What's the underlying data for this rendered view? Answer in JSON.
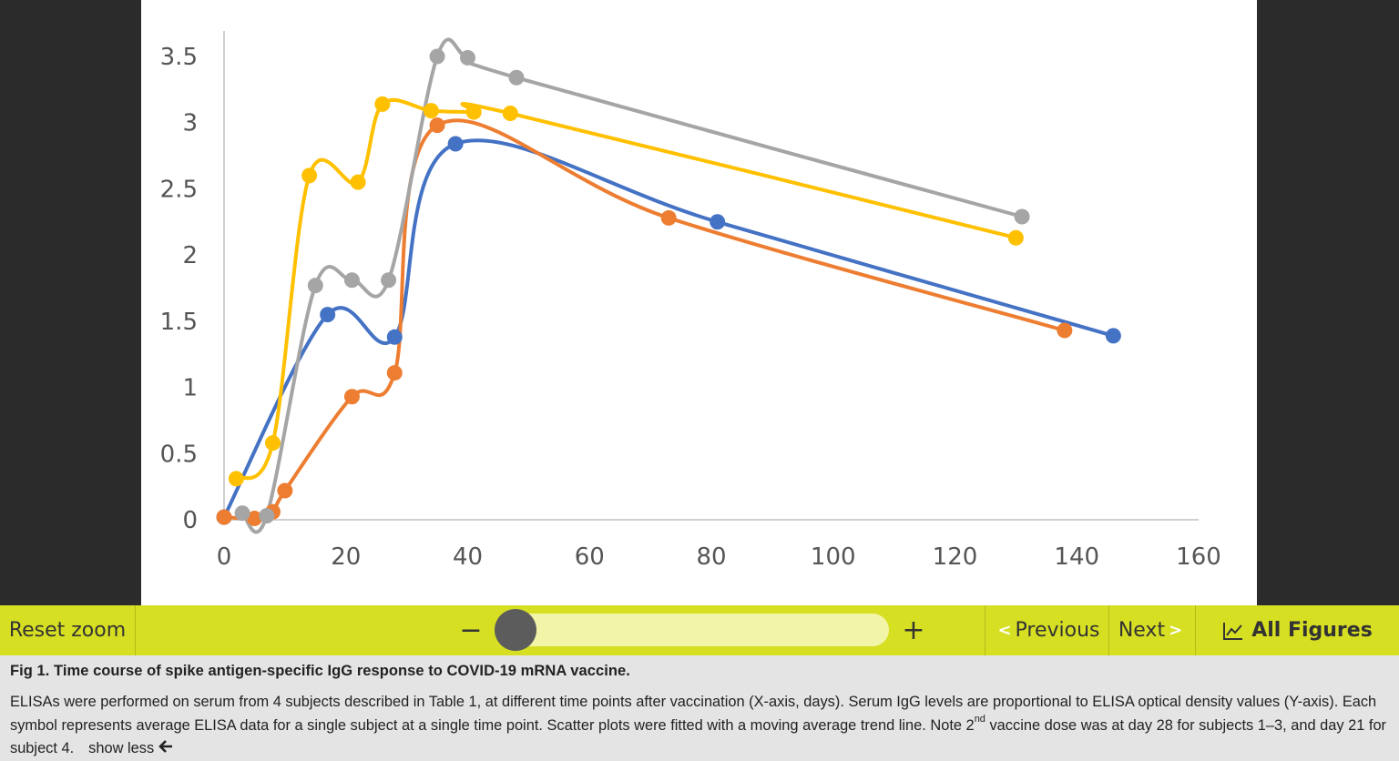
{
  "chart_data": {
    "type": "line",
    "title": "",
    "xlabel": "",
    "ylabel": "",
    "xlim": [
      0,
      160
    ],
    "ylim": [
      0,
      3.5
    ],
    "xticks": [
      0,
      20,
      40,
      60,
      80,
      100,
      120,
      140,
      160
    ],
    "yticks": [
      0,
      0.5,
      1,
      1.5,
      2,
      2.5,
      3,
      3.5
    ],
    "xtick_labels": [
      "0",
      "20",
      "40",
      "60",
      "80",
      "100",
      "120",
      "140",
      "160"
    ],
    "ytick_labels": [
      "0",
      "0.5",
      "1",
      "1.5",
      "2",
      "2.5",
      "3",
      "3.5"
    ],
    "grid": false,
    "legend": false,
    "series": [
      {
        "color": "#4472c4",
        "points": [
          [
            0,
            0.02
          ],
          [
            17,
            1.55
          ],
          [
            28,
            1.38
          ],
          [
            38,
            2.84
          ],
          [
            81,
            2.25
          ],
          [
            146,
            1.39
          ]
        ]
      },
      {
        "color": "#ed7d31",
        "points": [
          [
            0,
            0.02
          ],
          [
            5,
            0.01
          ],
          [
            8,
            0.06
          ],
          [
            10,
            0.22
          ],
          [
            21,
            0.93
          ],
          [
            28,
            1.11
          ],
          [
            35,
            2.98
          ],
          [
            73,
            2.28
          ],
          [
            138,
            1.43
          ]
        ]
      },
      {
        "color": "#a5a5a5",
        "points": [
          [
            3,
            0.05
          ],
          [
            7,
            0.03
          ],
          [
            15,
            1.77
          ],
          [
            21,
            1.81
          ],
          [
            27,
            1.81
          ],
          [
            35,
            3.5
          ],
          [
            40,
            3.49
          ],
          [
            48,
            3.34
          ],
          [
            131,
            2.29
          ]
        ]
      },
      {
        "color": "#ffc000",
        "points": [
          [
            2,
            0.31
          ],
          [
            8,
            0.58
          ],
          [
            14,
            2.6
          ],
          [
            22,
            2.55
          ],
          [
            26,
            3.14
          ],
          [
            34,
            3.09
          ],
          [
            41,
            3.08
          ],
          [
            47,
            3.07
          ],
          [
            130,
            2.13
          ]
        ]
      }
    ]
  },
  "toolbar": {
    "reset_zoom": "Reset zoom",
    "zoom_out": "−",
    "zoom_in": "+",
    "previous": "Previous",
    "next": "Next",
    "all_figures": "All Figures",
    "zoom_level": 0
  },
  "caption": {
    "title": "Fig 1. Time course of spike antigen-specific IgG response to COVID-19 mRNA vaccine.",
    "text_before_link": "ELISAs were performed on serum from 4 subjects described in ",
    "table_link": "Table 1",
    "text_after_link": ", at different time points after vaccination (X-axis, days). Serum IgG levels are proportional to ELISA optical density values (Y-axis). Each symbol represents average ELISA data for a single subject at a single time point. Scatter plots were fitted with a moving average trend line. Note 2",
    "superscript": "nd",
    "text_end": " vaccine dose was at day 28 for subjects 1–3, and day 21 for subject 4.",
    "show_less": "show less"
  }
}
